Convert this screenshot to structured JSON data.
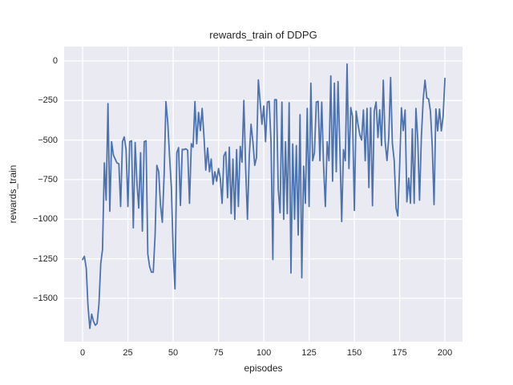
{
  "figure": {
    "background": "#ffffff"
  },
  "chart_data": {
    "type": "line",
    "title": "rewards_train of DDPG",
    "xlabel": "episodes",
    "ylabel": "rewards_train",
    "style": "seaborn-darkgrid",
    "grid": true,
    "legend": null,
    "axes_background": "#eaeaf2",
    "grid_color": "#ffffff",
    "text_color": "#262626",
    "series_color": "#4c72b0",
    "xlim": [
      -10.2,
      209.7
    ],
    "ylim": [
      -1774,
      91
    ],
    "x_ticks": [
      0,
      25,
      50,
      75,
      100,
      125,
      150,
      175,
      200
    ],
    "y_ticks": [
      0,
      -250,
      -500,
      -750,
      -1000,
      -1250,
      -1500
    ],
    "x_start": 0,
    "x_step": 1,
    "values": [
      -1255,
      -1235,
      -1310,
      -1550,
      -1690,
      -1600,
      -1645,
      -1670,
      -1660,
      -1540,
      -1280,
      -1190,
      -645,
      -880,
      -270,
      -950,
      -510,
      -595,
      -620,
      -645,
      -650,
      -920,
      -510,
      -480,
      -560,
      -920,
      -510,
      -505,
      -1055,
      -515,
      -775,
      -930,
      -580,
      -1075,
      -510,
      -505,
      -1220,
      -1300,
      -1335,
      -1335,
      -1100,
      -660,
      -700,
      -910,
      -1020,
      -715,
      -257,
      -390,
      -600,
      -800,
      -1210,
      -1440,
      -580,
      -548,
      -913,
      -558,
      -560,
      -555,
      -565,
      -900,
      -523,
      -545,
      -257,
      -523,
      -325,
      -440,
      -300,
      -480,
      -690,
      -550,
      -700,
      -620,
      -780,
      -700,
      -760,
      -680,
      -740,
      -900,
      -600,
      -575,
      -865,
      -545,
      -965,
      -620,
      -1000,
      -560,
      -920,
      -540,
      -640,
      -250,
      -680,
      -1000,
      -600,
      -400,
      -510,
      -660,
      -610,
      -120,
      -255,
      -400,
      -285,
      -510,
      -260,
      -255,
      -510,
      -1255,
      -245,
      -245,
      -810,
      -960,
      -260,
      -1000,
      -510,
      -965,
      -265,
      -1340,
      -525,
      -1000,
      -535,
      -1100,
      -340,
      -1370,
      -665,
      -900,
      -300,
      -920,
      -140,
      -630,
      -580,
      -260,
      -255,
      -630,
      -260,
      -650,
      -920,
      -510,
      -630,
      -95,
      -760,
      -140,
      -700,
      -130,
      -545,
      -1015,
      -560,
      -630,
      -20,
      -680,
      -295,
      -350,
      -945,
      -317,
      -400,
      -467,
      -500,
      -310,
      -630,
      -300,
      -800,
      -296,
      -915,
      -317,
      -259,
      -484,
      -309,
      -535,
      -122,
      -510,
      -629,
      -484,
      -105,
      -520,
      -629,
      -929,
      -980,
      -663,
      -296,
      -440,
      -310,
      -890,
      -740,
      -900,
      -430,
      -900,
      -300,
      -500,
      -880,
      -480,
      -240,
      -122,
      -235,
      -240,
      -317,
      -544,
      -908,
      -304,
      -442,
      -304,
      -442,
      -350,
      -110
    ]
  }
}
